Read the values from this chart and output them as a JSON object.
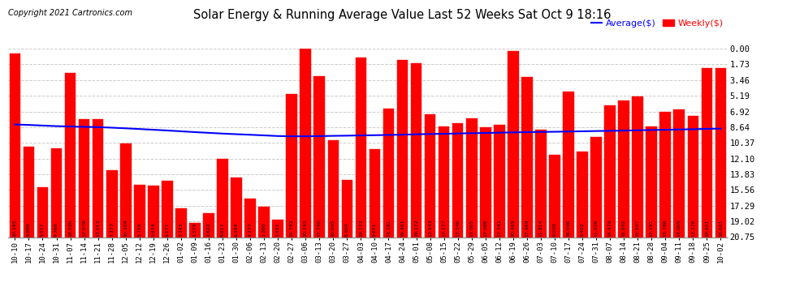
{
  "title": "Solar Energy & Running Average Value Last 52 Weeks Sat Oct 9 18:16",
  "copyright": "Copyright 2021 Cartronics.com",
  "legend_avg": "Average($)",
  "legend_weekly": "Weekly($)",
  "bar_color": "#ff0000",
  "avg_line_color": "#0000ff",
  "background_color": "#ffffff",
  "plot_bg_color": "#ffffff",
  "grid_color": "#cccccc",
  "ylabel_right": [
    "20.75",
    "19.02",
    "17.29",
    "15.56",
    "13.83",
    "12.10",
    "10.37",
    "8.64",
    "6.92",
    "5.19",
    "3.46",
    "1.73",
    "0.00"
  ],
  "yticks": [
    0.0,
    1.73,
    3.46,
    5.19,
    6.92,
    8.64,
    10.37,
    12.1,
    13.83,
    15.56,
    17.29,
    19.02,
    20.75
  ],
  "categories": [
    "10-10",
    "10-17",
    "10-24",
    "10-31",
    "11-07",
    "11-14",
    "11-21",
    "11-28",
    "12-05",
    "12-12",
    "12-19",
    "12-26",
    "01-02",
    "01-09",
    "01-16",
    "01-23",
    "01-30",
    "02-06",
    "02-13",
    "02-20",
    "02-27",
    "03-06",
    "03-13",
    "03-20",
    "03-27",
    "04-03",
    "04-10",
    "04-17",
    "04-24",
    "05-01",
    "05-08",
    "05-15",
    "05-22",
    "05-29",
    "06-05",
    "06-12",
    "06-19",
    "06-26",
    "07-03",
    "07-10",
    "07-17",
    "07-24",
    "07-31",
    "08-07",
    "08-14",
    "08-21",
    "08-28",
    "09-04",
    "09-11",
    "09-18",
    "09-25",
    "10-02"
  ],
  "weekly_values": [
    20.195,
    9.986,
    5.517,
    9.766,
    18.039,
    12.978,
    13.013,
    7.377,
    10.304,
    5.716,
    5.674,
    6.171,
    3.143,
    1.579,
    2.622,
    8.617,
    6.594,
    4.277,
    3.38,
    1.921,
    15.792,
    20.745,
    17.74,
    10.695,
    6.304,
    19.772,
    9.651,
    14.181,
    19.461,
    19.172,
    13.543,
    12.177,
    12.546,
    13.065,
    12.088,
    12.341,
    20.465,
    17.669,
    11.814,
    9.039,
    16.046,
    9.402,
    11.026,
    14.476,
    15.002,
    15.507,
    12.191,
    13.786,
    14.069,
    13.376,
    18.601,
    18.601
  ],
  "avg_values": [
    12.4,
    12.35,
    12.28,
    12.22,
    12.18,
    12.14,
    12.11,
    12.05,
    11.98,
    11.9,
    11.82,
    11.74,
    11.65,
    11.56,
    11.48,
    11.4,
    11.33,
    11.27,
    11.2,
    11.13,
    11.1,
    11.1,
    11.12,
    11.15,
    11.17,
    11.2,
    11.22,
    11.25,
    11.28,
    11.32,
    11.35,
    11.38,
    11.41,
    11.44,
    11.47,
    11.5,
    11.53,
    11.56,
    11.58,
    11.6,
    11.63,
    11.65,
    11.68,
    11.7,
    11.73,
    11.76,
    11.79,
    11.82,
    11.85,
    11.88,
    11.92,
    11.95
  ]
}
